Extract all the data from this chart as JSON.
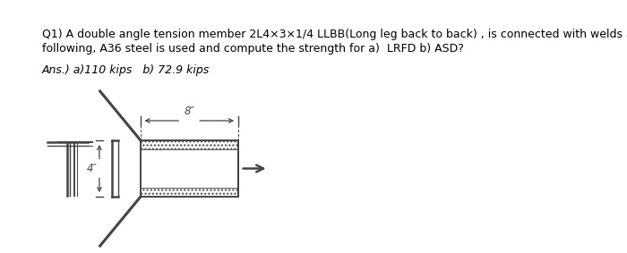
{
  "bg_color": "#ffffff",
  "text_color": "#000000",
  "line_color": "#444444",
  "question_line1": "Q1) A double angle tension member 2L4×3×1/4 LLBB(Long leg back to back) , is connected with welds as",
  "question_line2": "following, A36 steel is used and compute the strength for a)  LRFD b) ASD?",
  "answer_text": "Ans.) a)110 kips   b) 72.9 kips",
  "dim_8_label": "8″",
  "dim_4_label": "4″",
  "question_fontsize": 9.0,
  "answer_fontsize": 9.0,
  "fig_width": 7.0,
  "fig_height": 2.83,
  "dpi": 100
}
